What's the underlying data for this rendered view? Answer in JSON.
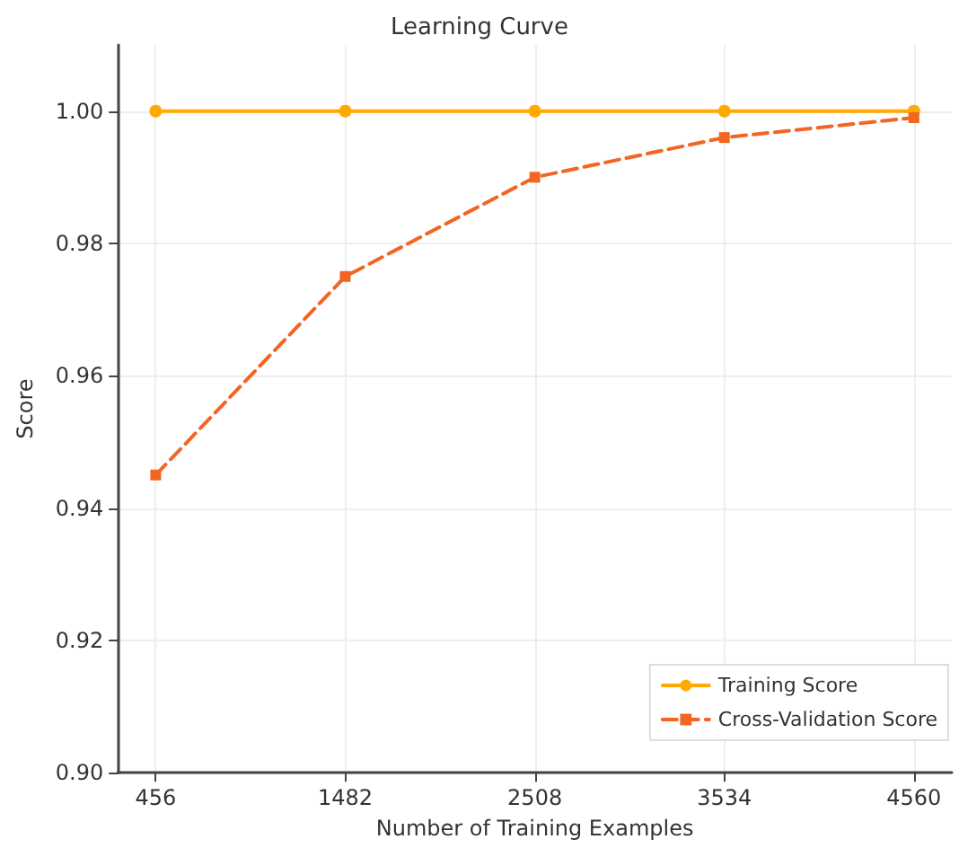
{
  "chart_data": {
    "type": "line",
    "title": "Learning Curve",
    "xlabel": "Number of Training Examples",
    "ylabel": "Score",
    "x": [
      456,
      1482,
      2508,
      3534,
      4560
    ],
    "series": [
      {
        "name": "Training Score",
        "color": "#ffaa00",
        "values": [
          1.0,
          1.0,
          1.0,
          1.0,
          1.0
        ],
        "marker": "circle",
        "line_style": "solid"
      },
      {
        "name": "Cross-Validation Score",
        "color": "#f26522",
        "values": [
          0.945,
          0.975,
          0.99,
          0.996,
          0.999
        ],
        "marker": "square",
        "line_style": "dashed"
      }
    ],
    "xlim": [
      251,
      4765
    ],
    "xticks": [
      456,
      1482,
      2508,
      3534,
      4560
    ],
    "ylim": [
      0.9,
      1.01
    ],
    "yticks": [
      {
        "value": 0.9,
        "label": "0.90"
      },
      {
        "value": 0.92,
        "label": "0.92"
      },
      {
        "value": 0.94,
        "label": "0.94"
      },
      {
        "value": 0.96,
        "label": "0.96"
      },
      {
        "value": 0.98,
        "label": "0.98"
      },
      {
        "value": 1.0,
        "label": "1.00"
      }
    ],
    "grid": true,
    "legend": "bottom right"
  }
}
